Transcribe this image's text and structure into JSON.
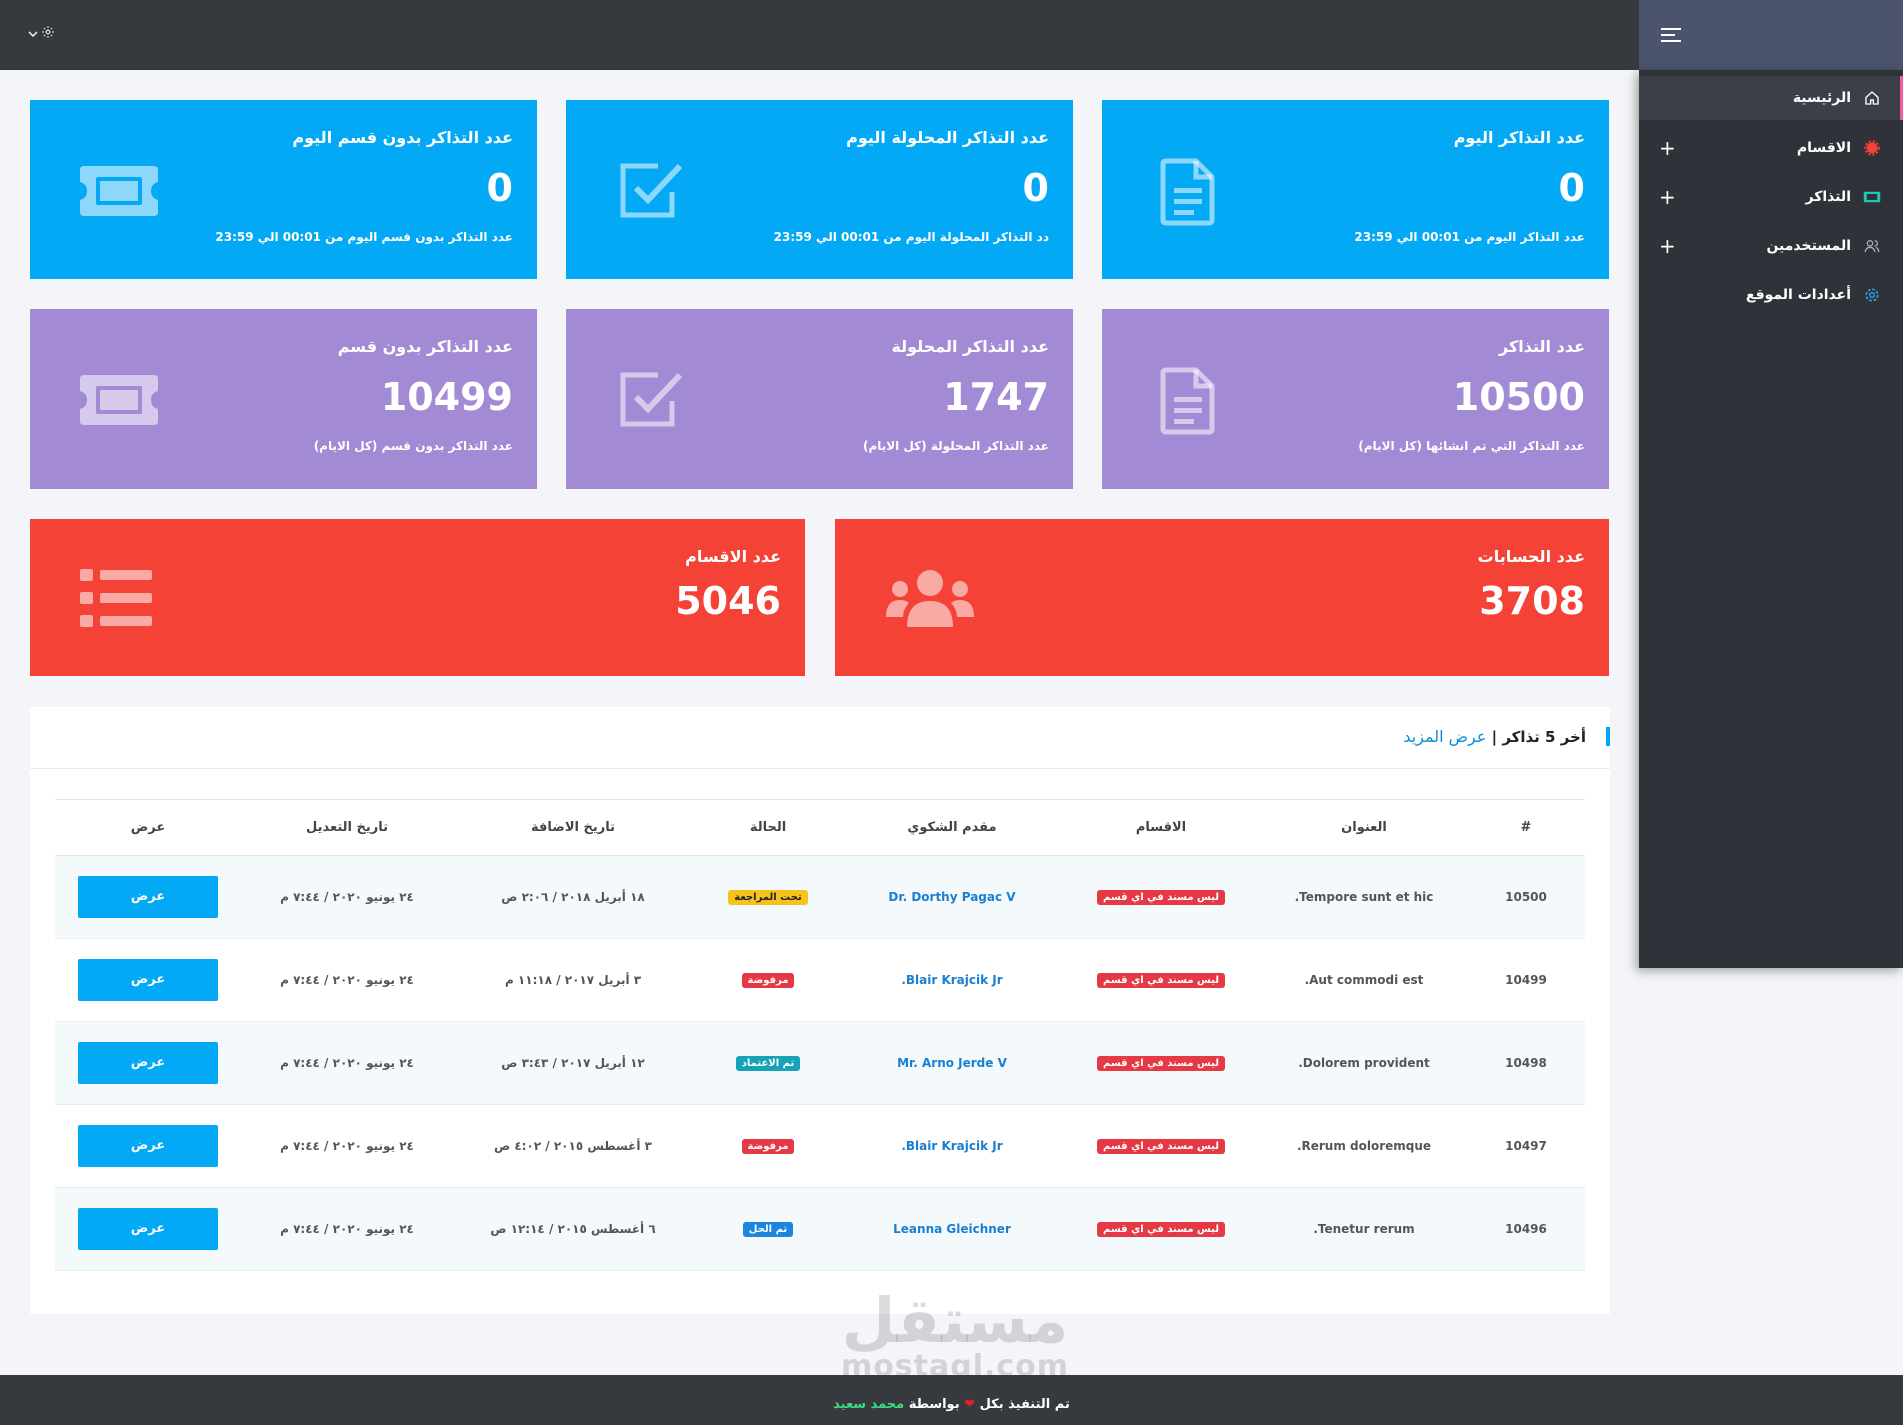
{
  "sidebar": {
    "items": [
      {
        "label": "الرئيسية",
        "icon": "home-icon"
      },
      {
        "label": "الاقسام",
        "icon": "gear-badge-icon"
      },
      {
        "label": "التذاكر",
        "icon": "ticket-icon"
      },
      {
        "label": "المستخدمين",
        "icon": "users-icon"
      },
      {
        "label": "أعدادات الموقع",
        "icon": "settings-icon"
      }
    ],
    "plus": "+"
  },
  "stats": {
    "today_tickets": {
      "title": "عدد التذاكر اليوم",
      "value": "0",
      "desc": "عدد التذاكر اليوم من 00:01 الي 23:59"
    },
    "today_solved": {
      "title": "عدد التذاكر المحلولة اليوم",
      "value": "0",
      "desc": "دد التذاكر المحلولة اليوم من 00:01 الي 23:59"
    },
    "today_no_dept": {
      "title": "عدد التذاكر بدون قسم اليوم",
      "value": "0",
      "desc": "عدد التذاكر بدون قسم اليوم من 00:01 الي 23:59"
    },
    "all_tickets": {
      "title": "عدد التذاكر",
      "value": "10500",
      "desc": "عدد التذاكر التي تم انشائها (كل الايام)"
    },
    "all_solved": {
      "title": "عدد التذاكر المحلولة",
      "value": "1747",
      "desc": "عدد التذاكر المحلولة (كل الايام)"
    },
    "all_no_dept": {
      "title": "عدد التذاكر بدون قسم",
      "value": "10499",
      "desc": "عدد التذاكر بدون قسم (كل الايام)"
    },
    "accounts": {
      "title": "عدد الحسابات",
      "value": "3708"
    },
    "departments": {
      "title": "عدد الاقسام",
      "value": "5046"
    }
  },
  "panel": {
    "title": "أخر 5 تذاكر |",
    "more_link": "عرض المزيد"
  },
  "table": {
    "headers": [
      "#",
      "العنوان",
      "الاقسام",
      "مقدم الشكوي",
      "الحالة",
      "تاريخ الاضافة",
      "تاريخ التعديل",
      "عرض"
    ],
    "rows": [
      {
        "id": "10500",
        "title": "Tempore sunt et hic.",
        "dept": "ليس مسند في اي قسم",
        "user": "Dr. Dorthy Pagac V",
        "status": "تحت المراجعة",
        "status_color": "#f6c31b",
        "added": "١٨ أبريل ٢٠١٨ / ٢:٠٦ ص",
        "modified": "٢٤ يونيو ٢٠٢٠ / ٧:٤٤ م",
        "action": "عرض"
      },
      {
        "id": "10499",
        "title": "Aut commodi est.",
        "dept": "ليس مسند في اي قسم",
        "user": "Blair Krajcik Jr.",
        "status": "مرفوضة",
        "status_color": "#e53946",
        "added": "٣ أبريل ٢٠١٧ / ١١:١٨ م",
        "modified": "٢٤ يونيو ٢٠٢٠ / ٧:٤٤ م",
        "action": "عرض"
      },
      {
        "id": "10498",
        "title": "Dolorem provident.",
        "dept": "ليس مسند في اي قسم",
        "user": "Mr. Arno Jerde V",
        "status": "تم الاعتماد",
        "status_color": "#17a2b8",
        "added": "١٢ أبريل ٢٠١٧ / ٣:٤٣ ص",
        "modified": "٢٤ يونيو ٢٠٢٠ / ٧:٤٤ م",
        "action": "عرض"
      },
      {
        "id": "10497",
        "title": "Rerum doloremque.",
        "dept": "ليس مسند في اي قسم",
        "user": "Blair Krajcik Jr.",
        "status": "مرفوضة",
        "status_color": "#e53946",
        "added": "٣ أغسطس ٢٠١٥ / ٤:٠٢ ص",
        "modified": "٢٤ يونيو ٢٠٢٠ / ٧:٤٤ م",
        "action": "عرض"
      },
      {
        "id": "10496",
        "title": "Tenetur rerum.",
        "dept": "ليس مسند في اي قسم",
        "user": "Leanna Gleichner",
        "status": "تم الحل",
        "status_color": "#1b85e0",
        "added": "٦ أغسطس ٢٠١٥ / ١٢:١٤ ص",
        "modified": "٢٤ يونيو ٢٠٢٠ / ٧:٤٤ م",
        "action": "عرض"
      }
    ]
  },
  "footer": {
    "prefix": "تم التنفيذ بكل",
    "heart": "❤",
    "by": "بواسطة",
    "author": "محمد سعيد"
  },
  "watermark": {
    "arabic": "مستقل",
    "latin": "mostaql.com"
  },
  "colors": {
    "blue": "#03a9f4",
    "purple": "#a28ad5",
    "red": "#f44336",
    "topbar": "#36393e",
    "sidebar": "#2f3339"
  }
}
